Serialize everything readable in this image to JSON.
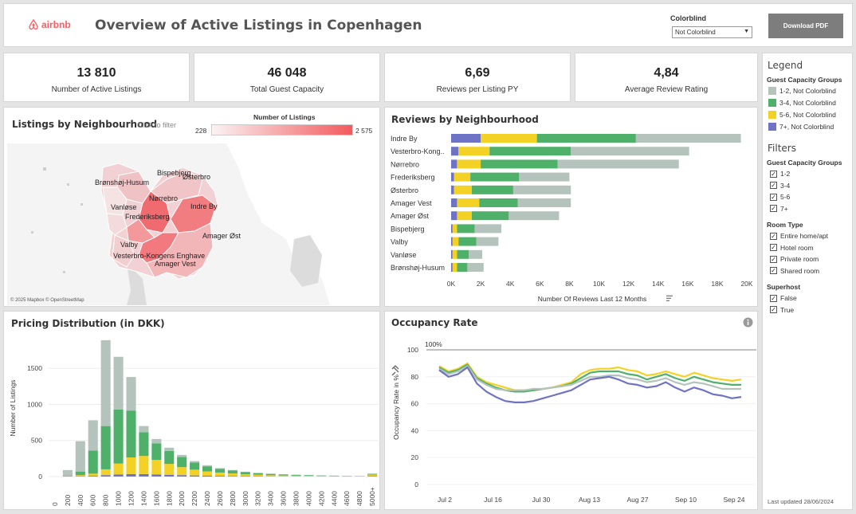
{
  "header": {
    "logo_text": "airbnb",
    "title": "Overview of Active Listings in Copenhagen",
    "colorblind_label": "Colorblind",
    "colorblind_value": "Not Colorblind",
    "download_label": "Download PDF"
  },
  "kpis": [
    {
      "value": "13 810",
      "label": "Number of Active Listings"
    },
    {
      "value": "46 048",
      "label": "Total Guest Capacity"
    },
    {
      "value": "6,69",
      "label": "Reviews per Listing PY"
    },
    {
      "value": "4,84",
      "label": "Average Review Rating"
    }
  ],
  "colors": {
    "gray": "#b5c3bd",
    "green": "#4fb06a",
    "yellow": "#f4d225",
    "blue": "#6f73c6",
    "map_low": "#f3dcdc",
    "map_high": "#f25a5e"
  },
  "map": {
    "title": "Listings by Neighbourhood",
    "hint": "Click to filter",
    "scale_title": "Number of Listings",
    "scale_min": "228",
    "scale_max": "2 575",
    "attribution": "© 2025 Mapbox © OpenStreetMap",
    "labels": [
      "Bispebjerg",
      "Østerbro",
      "Brønshøj-Husum",
      "Nørrebro",
      "Vanløse",
      "Indre By",
      "Frederiksberg",
      "Amager Øst",
      "Valby",
      "Vesterbro-Kongens Enghave",
      "Amager Vest"
    ]
  },
  "reviews": {
    "title": "Reviews by Neighbourhood",
    "xlabel": "Number Of Reviews Last 12 Months",
    "sort_icon": "sort-descending-icon"
  },
  "pricing": {
    "title": "Pricing Distribution (in DKK)",
    "ylabel": "Number of Listings"
  },
  "occupancy": {
    "title": "Occupancy Rate",
    "ylabel": "Occupancy Rate in %",
    "ref_label": "100%",
    "info_icon": "info-icon",
    "pin_icon": "pin-icon"
  },
  "legend": {
    "title": "Legend",
    "group_title": "Guest Capacity Groups",
    "items": [
      {
        "label": "1-2, Not Colorblind",
        "color": "#b5c3bd"
      },
      {
        "label": "3-4, Not Colorblind",
        "color": "#4fb06a"
      },
      {
        "label": "5-6, Not Colorblind",
        "color": "#f4d225"
      },
      {
        "label": "7+, Not Colorblind",
        "color": "#6f73c6"
      }
    ]
  },
  "filters": {
    "title": "Filters",
    "guest_title": "Guest Capacity Groups",
    "guest": [
      "1-2",
      "3-4",
      "5-6",
      "7+"
    ],
    "room_title": "Room Type",
    "room": [
      "Entire home/apt",
      "Hotel room",
      "Private room",
      "Shared room"
    ],
    "super_title": "Superhost",
    "super": [
      "False",
      "True"
    ]
  },
  "last_updated": "Last updated 28/06/2024",
  "chart_data": [
    {
      "type": "bar",
      "orientation": "horizontal",
      "stacked": true,
      "title": "Reviews by Neighbourhood",
      "xlabel": "Number Of Reviews Last 12 Months",
      "xlim": [
        0,
        20000
      ],
      "xticks": [
        "0K",
        "2K",
        "4K",
        "6K",
        "8K",
        "10K",
        "12K",
        "14K",
        "16K",
        "18K",
        "20K"
      ],
      "categories": [
        "Indre By",
        "Vesterbro-Kong..",
        "Nørrebro",
        "Frederiksberg",
        "Østerbro",
        "Amager Vest",
        "Amager Øst",
        "Bispebjerg",
        "Valby",
        "Vanløse",
        "Brønshøj-Husum"
      ],
      "series": [
        {
          "name": "7+, Not Colorblind",
          "values": [
            2000,
            500,
            400,
            200,
            200,
            400,
            400,
            100,
            100,
            100,
            100
          ]
        },
        {
          "name": "5-6, Not Colorblind",
          "values": [
            3800,
            2100,
            1600,
            1100,
            1200,
            1500,
            1000,
            300,
            400,
            300,
            300
          ]
        },
        {
          "name": "3-4, Not Colorblind",
          "values": [
            6700,
            5500,
            5200,
            3300,
            2800,
            2600,
            2500,
            1200,
            1200,
            800,
            700
          ]
        },
        {
          "name": "1-2, Not Colorblind",
          "values": [
            7100,
            8000,
            8200,
            3400,
            3900,
            3600,
            3400,
            1800,
            1500,
            900,
            1100
          ]
        }
      ]
    },
    {
      "type": "bar",
      "stacked": true,
      "title": "Pricing Distribution (in DKK)",
      "ylabel": "Number of Listings",
      "ylim": [
        0,
        1900
      ],
      "yticks": [
        0,
        500,
        1000,
        1500
      ],
      "categories": [
        "0",
        "200",
        "400",
        "600",
        "800",
        "1000",
        "1200",
        "1400",
        "1600",
        "1800",
        "2000",
        "2200",
        "2400",
        "2600",
        "2800",
        "3000",
        "3200",
        "3400",
        "3600",
        "3800",
        "4000",
        "4200",
        "4400",
        "4600",
        "4800",
        "5000+"
      ],
      "series": [
        {
          "name": "7+, Not Colorblind",
          "values": [
            0,
            0,
            5,
            10,
            20,
            30,
            35,
            35,
            30,
            25,
            20,
            15,
            12,
            10,
            8,
            6,
            5,
            4,
            3,
            3,
            2,
            2,
            2,
            1,
            1,
            8
          ]
        },
        {
          "name": "5-6, Not Colorblind",
          "values": [
            0,
            2,
            15,
            30,
            80,
            150,
            230,
            250,
            200,
            150,
            110,
            80,
            60,
            45,
            35,
            25,
            20,
            15,
            12,
            10,
            8,
            6,
            5,
            4,
            3,
            20
          ]
        },
        {
          "name": "3-4, Not Colorblind",
          "values": [
            0,
            8,
            50,
            320,
            600,
            750,
            650,
            330,
            230,
            180,
            140,
            100,
            70,
            50,
            40,
            30,
            22,
            18,
            14,
            11,
            9,
            7,
            5,
            4,
            3,
            10
          ]
        },
        {
          "name": "1-2, Not Colorblind",
          "values": [
            0,
            80,
            420,
            420,
            1190,
            730,
            465,
            85,
            60,
            45,
            30,
            20,
            15,
            12,
            8,
            6,
            5,
            4,
            3,
            3,
            2,
            2,
            2,
            1,
            1,
            2
          ]
        }
      ]
    },
    {
      "type": "line",
      "title": "Occupancy Rate",
      "ylabel": "Occupancy Rate in %",
      "ylim": [
        0,
        100
      ],
      "yticks": [
        0,
        20,
        40,
        60,
        80,
        100
      ],
      "xticks": [
        "Jul 2",
        "Jul 16",
        "Jul 30",
        "Aug 13",
        "Aug 27",
        "Sep 10",
        "Sep 24"
      ],
      "reference_line": 100,
      "series": [
        {
          "name": "5-6, Not Colorblind",
          "values": [
            88,
            84,
            86,
            90,
            80,
            76,
            74,
            72,
            70,
            70,
            70,
            71,
            72,
            74,
            76,
            82,
            85,
            86,
            86,
            87,
            85,
            84,
            81,
            82,
            84,
            82,
            80,
            83,
            81,
            79,
            78,
            77,
            78
          ]
        },
        {
          "name": "3-4, Not Colorblind",
          "values": [
            87,
            83,
            85,
            89,
            79,
            75,
            72,
            70,
            69,
            69,
            70,
            71,
            72,
            73,
            75,
            79,
            83,
            84,
            84,
            84,
            82,
            81,
            78,
            80,
            82,
            79,
            77,
            80,
            78,
            76,
            75,
            74,
            74
          ]
        },
        {
          "name": "1-2, Not Colorblind",
          "values": [
            86,
            82,
            84,
            88,
            78,
            74,
            71,
            70,
            70,
            70,
            71,
            71,
            72,
            73,
            74,
            77,
            80,
            80,
            81,
            81,
            79,
            78,
            76,
            77,
            79,
            76,
            74,
            76,
            75,
            73,
            71,
            71,
            71
          ]
        },
        {
          "name": "7+, Not Colorblind",
          "values": [
            85,
            80,
            82,
            87,
            75,
            69,
            65,
            62,
            61,
            61,
            62,
            64,
            66,
            68,
            70,
            74,
            78,
            79,
            80,
            78,
            75,
            74,
            72,
            73,
            76,
            72,
            69,
            72,
            70,
            67,
            66,
            64,
            65
          ]
        }
      ]
    }
  ]
}
